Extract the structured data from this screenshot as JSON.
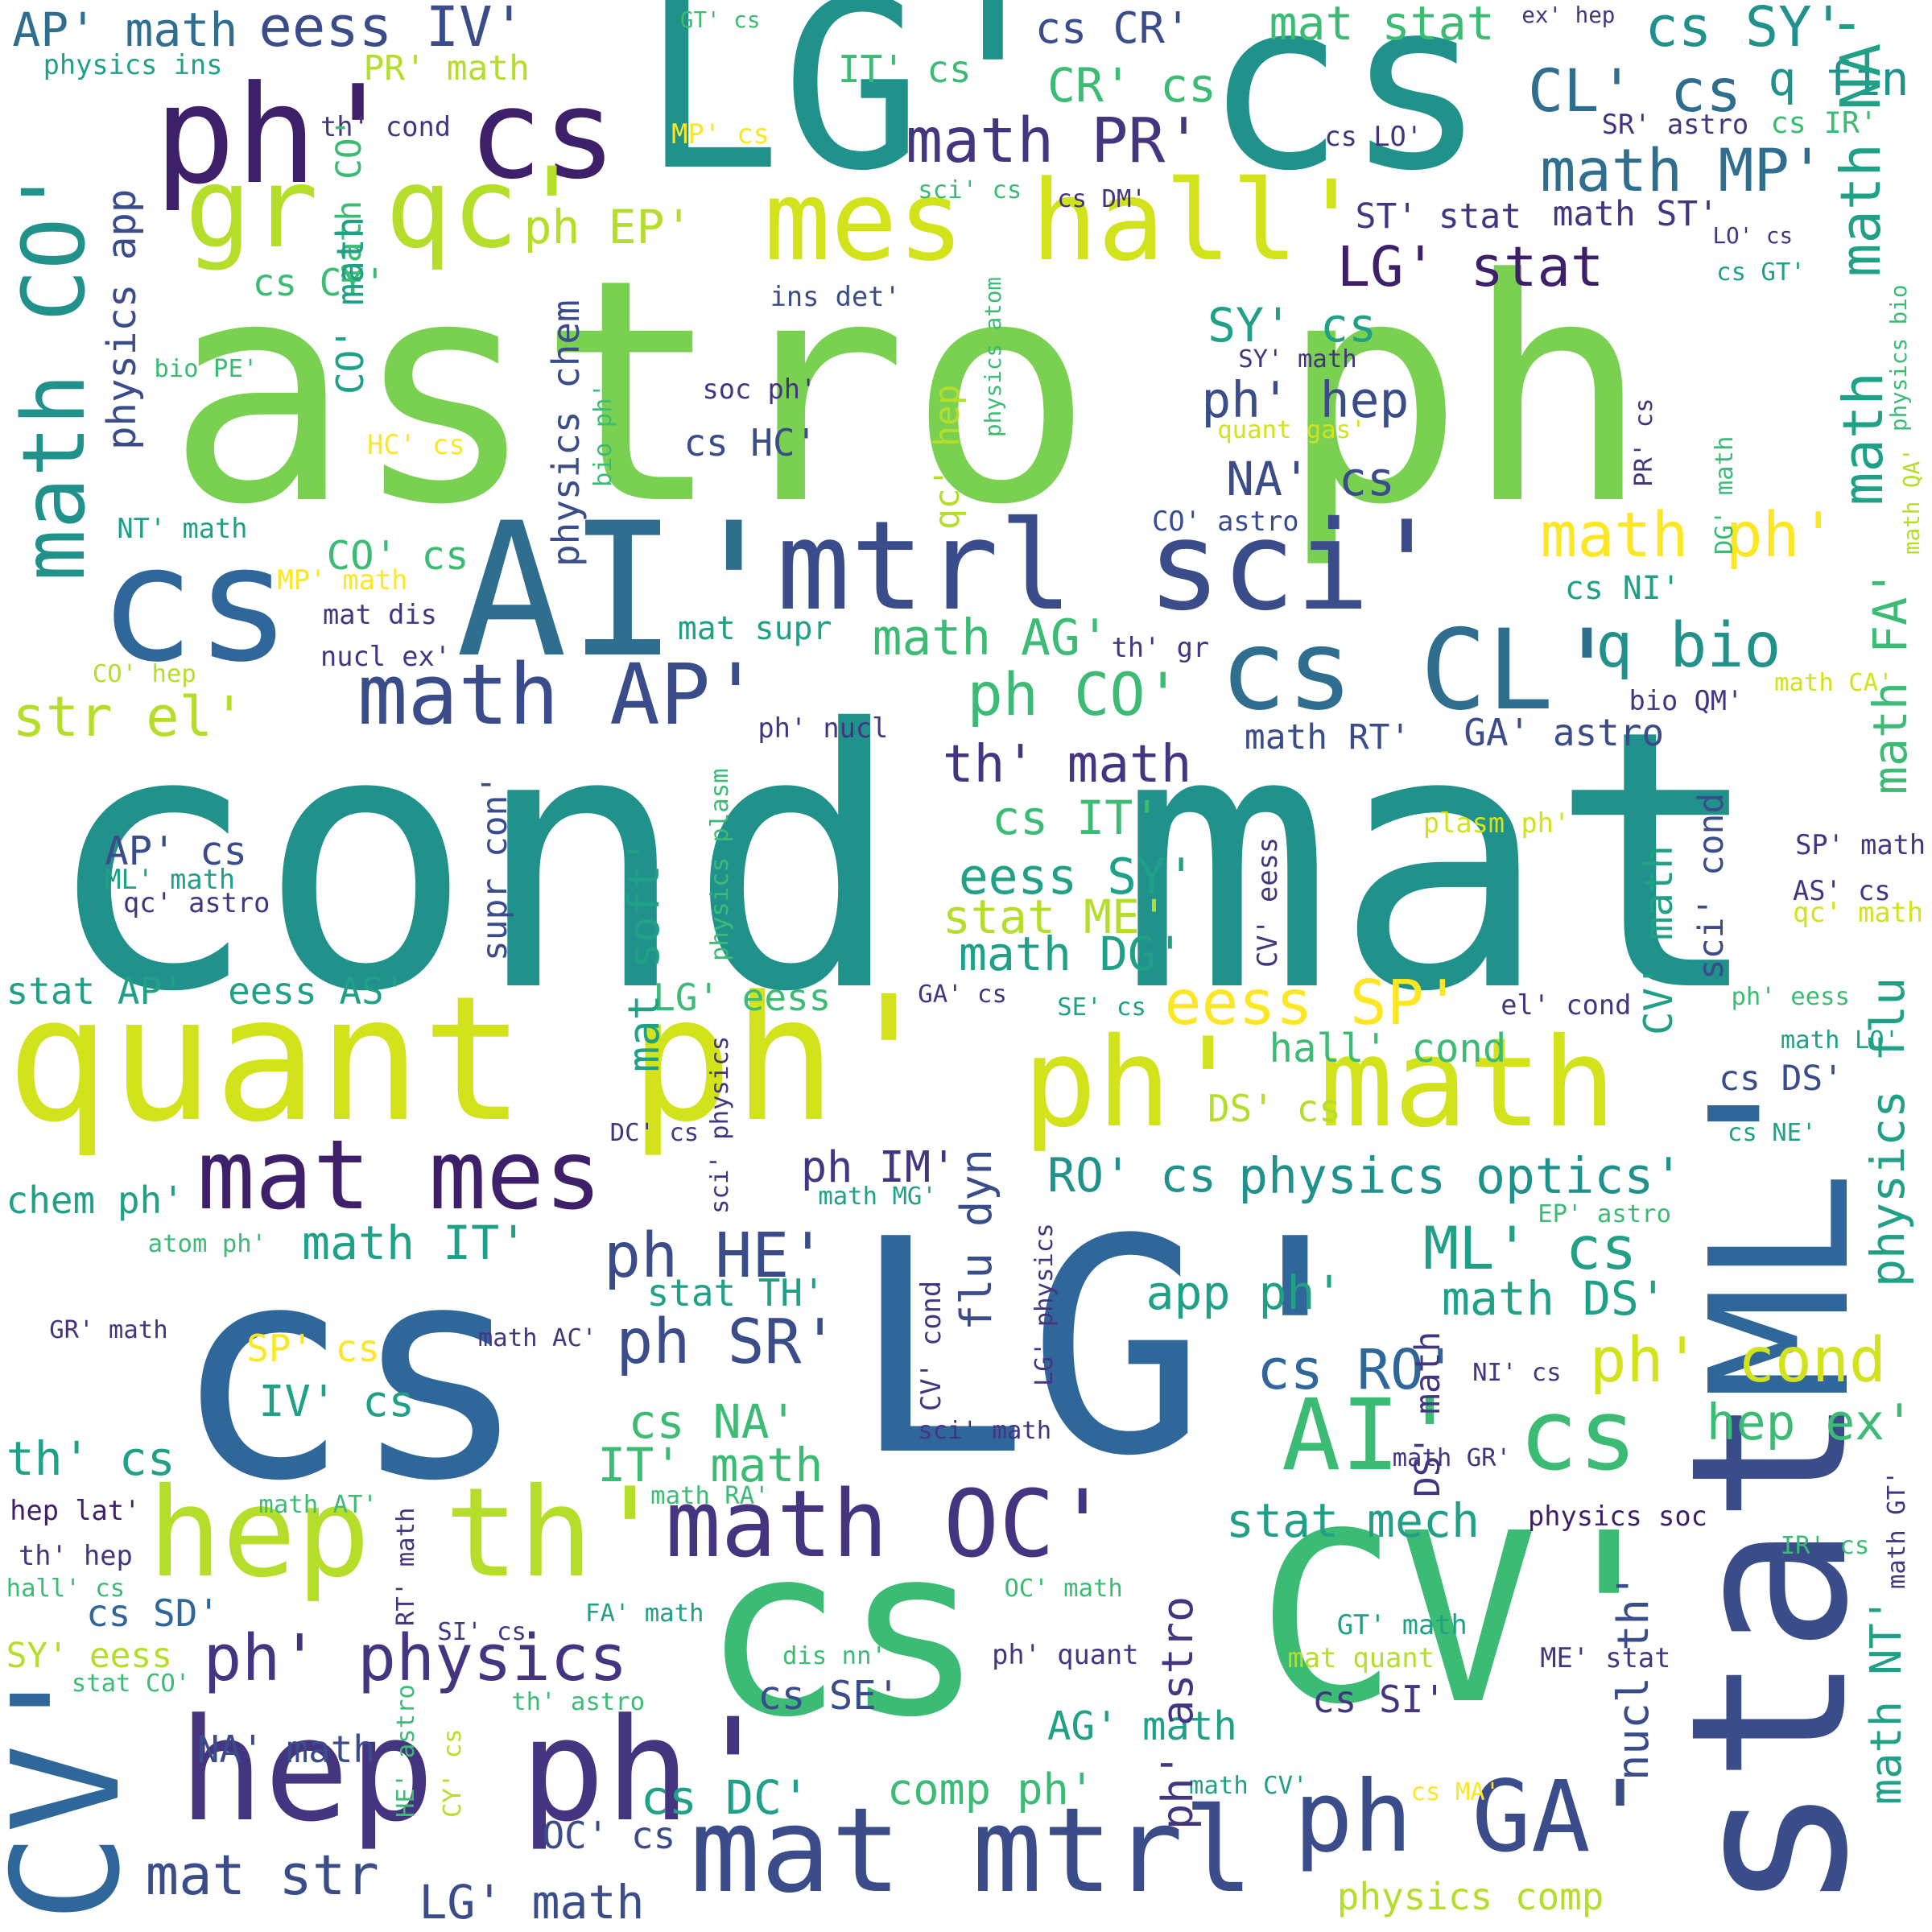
{
  "palette": {
    "purple": "#3e1f6a",
    "indigo": "#453581",
    "slate": "#3a4c8a",
    "blue": "#30679a",
    "steel": "#2f6e8e",
    "teal": "#21918c",
    "sea": "#1fa087",
    "green": "#3cbb75",
    "lime": "#7ad151",
    "yellowgreen": "#b5de2b",
    "yellow": "#fde725",
    "greenyellow": "#d2e21b"
  },
  "words": [
    {
      "text": "astro ph",
      "color": "lime"
    },
    {
      "text": "cond mat",
      "color": "teal"
    },
    {
      "text": "LG' cs",
      "color": "teal"
    },
    {
      "text": "LG'",
      "color": "blue"
    },
    {
      "text": "cs",
      "color": "blue"
    },
    {
      "text": "cs",
      "color": "green"
    },
    {
      "text": "CV'",
      "color": "green"
    },
    {
      "text": "quant ph'",
      "color": "greenyellow"
    },
    {
      "text": "AI'",
      "color": "steel"
    },
    {
      "text": "cs",
      "color": "blue"
    },
    {
      "text": "mtrl sci'",
      "color": "slate"
    },
    {
      "text": "stat",
      "color": "slate"
    },
    {
      "text": "ML'",
      "color": "blue"
    },
    {
      "text": "CV'",
      "color": "blue"
    },
    {
      "text": "hep ph'",
      "color": "indigo"
    },
    {
      "text": "cs",
      "color": "purple"
    },
    {
      "text": "ph'",
      "color": "purple"
    },
    {
      "text": "math CO'",
      "color": "teal"
    },
    {
      "text": "ph' math",
      "color": "greenyellow"
    },
    {
      "text": "hep th'",
      "color": "yellowgreen"
    },
    {
      "text": "mat mes",
      "color": "purple"
    },
    {
      "text": "math OC'",
      "color": "indigo"
    },
    {
      "text": "mat mtrl",
      "color": "slate"
    },
    {
      "text": "ph GA'",
      "color": "slate"
    },
    {
      "text": "cs CL'",
      "color": "steel"
    },
    {
      "text": "mes hall'",
      "color": "greenyellow"
    },
    {
      "text": "math AP'",
      "color": "slate"
    },
    {
      "text": "gr qc'",
      "color": "yellowgreen"
    },
    {
      "text": "AI' cs",
      "color": "green"
    },
    {
      "text": "ph' physics",
      "color": "indigo"
    },
    {
      "text": "q bio",
      "color": "teal"
    },
    {
      "text": "ph' cond",
      "color": "greenyellow"
    },
    {
      "text": "math ph'",
      "color": "yellow"
    },
    {
      "text": "math PR'",
      "color": "indigo"
    },
    {
      "text": "math MP'",
      "color": "steel"
    },
    {
      "text": "CL' cs",
      "color": "steel"
    },
    {
      "text": "q fin",
      "color": "teal"
    },
    {
      "text": "cs SY'",
      "color": "teal"
    },
    {
      "text": "AP' math",
      "color": "steel"
    },
    {
      "text": "eess IV'",
      "color": "slate"
    },
    {
      "text": "cs CR'",
      "color": "slate"
    },
    {
      "text": "mat stat",
      "color": "green"
    },
    {
      "text": "LG' stat",
      "color": "purple"
    },
    {
      "text": "ph EP'",
      "color": "yellowgreen"
    },
    {
      "text": "CR' cs",
      "color": "green"
    },
    {
      "text": "str el'",
      "color": "yellowgreen"
    },
    {
      "text": "ph CO'",
      "color": "green"
    },
    {
      "text": "th' math",
      "color": "indigo"
    },
    {
      "text": "math AG'",
      "color": "green"
    },
    {
      "text": "cs IT'",
      "color": "green"
    },
    {
      "text": "eess SY'",
      "color": "sea"
    },
    {
      "text": "stat ME'",
      "color": "yellowgreen"
    },
    {
      "text": "math DG'",
      "color": "sea"
    },
    {
      "text": "eess SP'",
      "color": "yellow"
    },
    {
      "text": "hall' cond",
      "color": "green"
    },
    {
      "text": "physics optics'",
      "color": "teal"
    },
    {
      "text": "RO' cs",
      "color": "teal"
    },
    {
      "text": "ph IM'",
      "color": "indigo"
    },
    {
      "text": "ph HE'",
      "color": "slate"
    },
    {
      "text": "ph SR'",
      "color": "slate"
    },
    {
      "text": "math IT'",
      "color": "sea"
    },
    {
      "text": "ML' cs",
      "color": "sea"
    },
    {
      "text": "math DS'",
      "color": "sea"
    },
    {
      "text": "app ph'",
      "color": "sea"
    },
    {
      "text": "cs RO'",
      "color": "blue"
    },
    {
      "text": "hep ex'",
      "color": "green"
    },
    {
      "text": "stat mech",
      "color": "sea"
    },
    {
      "text": "cs NA'",
      "color": "green"
    },
    {
      "text": "IT' math",
      "color": "green"
    },
    {
      "text": "th' cs",
      "color": "sea"
    },
    {
      "text": "IV' cs",
      "color": "sea"
    },
    {
      "text": "chem ph'",
      "color": "sea"
    },
    {
      "text": "stat TH'",
      "color": "sea"
    },
    {
      "text": "cs SD'",
      "color": "blue"
    },
    {
      "text": "mat str",
      "color": "slate"
    },
    {
      "text": "LG' math",
      "color": "slate"
    },
    {
      "text": "NA' math",
      "color": "slate"
    },
    {
      "text": "cs DC'",
      "color": "sea"
    },
    {
      "text": "comp ph'",
      "color": "green"
    },
    {
      "text": "AG' math",
      "color": "sea"
    },
    {
      "text": "cs SI'",
      "color": "indigo"
    },
    {
      "text": "cs SE'",
      "color": "slate"
    },
    {
      "text": "OC' cs",
      "color": "slate"
    },
    {
      "text": "physics comp",
      "color": "yellowgreen"
    },
    {
      "text": "SY' eess",
      "color": "yellowgreen"
    },
    {
      "text": "stat AP'",
      "color": "sea"
    },
    {
      "text": "eess AS'",
      "color": "sea"
    },
    {
      "text": "LG' eess",
      "color": "green"
    },
    {
      "text": "AP' cs",
      "color": "slate"
    },
    {
      "text": "SY' cs",
      "color": "sea"
    },
    {
      "text": "ph' hep",
      "color": "slate"
    },
    {
      "text": "NA' cs",
      "color": "slate"
    },
    {
      "text": "CO' cs",
      "color": "green"
    },
    {
      "text": "cs CY'",
      "color": "green"
    },
    {
      "text": "cs HC'",
      "color": "slate"
    },
    {
      "text": "mat supr",
      "color": "sea"
    },
    {
      "text": "math RT'",
      "color": "slate"
    },
    {
      "text": "GA' astro",
      "color": "slate"
    },
    {
      "text": "ST' stat",
      "color": "indigo"
    },
    {
      "text": "math ST'",
      "color": "indigo"
    },
    {
      "text": "cs NI'",
      "color": "sea"
    },
    {
      "text": "cs DS'",
      "color": "slate"
    },
    {
      "text": "DS' cs",
      "color": "yellowgreen"
    },
    {
      "text": "IT' cs",
      "color": "green"
    },
    {
      "text": "PR' math",
      "color": "yellowgreen"
    },
    {
      "text": "physics ins",
      "color": "sea"
    },
    {
      "text": "GT' cs",
      "color": "green"
    },
    {
      "text": "ex' hep",
      "color": "indigo"
    },
    {
      "text": "th' cond",
      "color": "indigo"
    },
    {
      "text": "MP' cs",
      "color": "yellow"
    },
    {
      "text": "cs LO'",
      "color": "indigo"
    },
    {
      "text": "SR' astro",
      "color": "indigo"
    },
    {
      "text": "cs IR'",
      "color": "green"
    },
    {
      "text": "sci' cs",
      "color": "green"
    },
    {
      "text": "cs DM'",
      "color": "indigo"
    },
    {
      "text": "LO' cs",
      "color": "indigo"
    },
    {
      "text": "cs GT'",
      "color": "sea"
    },
    {
      "text": "ins det'",
      "color": "slate"
    },
    {
      "text": "bio PE'",
      "color": "green"
    },
    {
      "text": "soc ph'",
      "color": "indigo"
    },
    {
      "text": "SY' math",
      "color": "indigo"
    },
    {
      "text": "quant gas'",
      "color": "greenyellow"
    },
    {
      "text": "HC' cs",
      "color": "yellow"
    },
    {
      "text": "NT' math",
      "color": "sea"
    },
    {
      "text": "CO' astro",
      "color": "slate"
    },
    {
      "text": "MP' math",
      "color": "yellow"
    },
    {
      "text": "mat dis",
      "color": "indigo"
    },
    {
      "text": "nucl ex'",
      "color": "indigo"
    },
    {
      "text": "CO' hep",
      "color": "yellowgreen"
    },
    {
      "text": "th' gr",
      "color": "indigo"
    },
    {
      "text": "math CA'",
      "color": "greenyellow"
    },
    {
      "text": "bio QM'",
      "color": "indigo"
    },
    {
      "text": "ph' nucl",
      "color": "indigo"
    },
    {
      "text": "plasm ph'",
      "color": "greenyellow"
    },
    {
      "text": "SP' math",
      "color": "indigo"
    },
    {
      "text": "AS' cs",
      "color": "indigo"
    },
    {
      "text": "qc' math",
      "color": "greenyellow"
    },
    {
      "text": "ML' math",
      "color": "sea"
    },
    {
      "text": "qc' astro",
      "color": "indigo"
    },
    {
      "text": "GA' cs",
      "color": "indigo"
    },
    {
      "text": "SE' cs",
      "color": "sea"
    },
    {
      "text": "el' cond",
      "color": "indigo"
    },
    {
      "text": "ph' eess",
      "color": "green"
    },
    {
      "text": "math LO'",
      "color": "sea"
    },
    {
      "text": "cs NE'",
      "color": "sea"
    },
    {
      "text": "DC' cs",
      "color": "indigo"
    },
    {
      "text": "math MG'",
      "color": "sea"
    },
    {
      "text": "EP' astro",
      "color": "green"
    },
    {
      "text": "atom ph'",
      "color": "green"
    },
    {
      "text": "GR' math",
      "color": "indigo"
    },
    {
      "text": "math AC'",
      "color": "indigo"
    },
    {
      "text": "NI' cs",
      "color": "indigo"
    },
    {
      "text": "SP' cs",
      "color": "yellow"
    },
    {
      "text": "sci' math",
      "color": "indigo"
    },
    {
      "text": "math GR'",
      "color": "indigo"
    },
    {
      "text": "hep lat'",
      "color": "purple"
    },
    {
      "text": "math AT'",
      "color": "green"
    },
    {
      "text": "math RA'",
      "color": "green"
    },
    {
      "text": "physics soc",
      "color": "purple"
    },
    {
      "text": "th' hep",
      "color": "indigo"
    },
    {
      "text": "hall' cs",
      "color": "green"
    },
    {
      "text": "IR' cs",
      "color": "green"
    },
    {
      "text": "OC' math",
      "color": "green"
    },
    {
      "text": "GT' math",
      "color": "sea"
    },
    {
      "text": "SI' cs",
      "color": "indigo"
    },
    {
      "text": "FA' math",
      "color": "sea"
    },
    {
      "text": "dis nn'",
      "color": "green"
    },
    {
      "text": "ph' quant",
      "color": "indigo"
    },
    {
      "text": "mat quant",
      "color": "yellowgreen"
    },
    {
      "text": "ME' stat",
      "color": "indigo"
    },
    {
      "text": "stat CO'",
      "color": "green"
    },
    {
      "text": "th' astro",
      "color": "green"
    },
    {
      "text": "math CV'",
      "color": "sea"
    },
    {
      "text": "cs MA'",
      "color": "yellow"
    },
    {
      "text": "physics app",
      "color": "slate"
    },
    {
      "text": "math CO'",
      "color": "green"
    },
    {
      "text": "CO' math",
      "color": "sea"
    },
    {
      "text": "physics chem",
      "color": "slate"
    },
    {
      "text": "physics atom",
      "color": "green"
    },
    {
      "text": "bio ph'",
      "color": "green"
    },
    {
      "text": "qc' hep",
      "color": "yellowgreen"
    },
    {
      "text": "mat soft'",
      "color": "sea"
    },
    {
      "text": "supr con'",
      "color": "slate"
    },
    {
      "text": "physics plasm",
      "color": "green"
    },
    {
      "text": "sci' physics",
      "color": "indigo"
    },
    {
      "text": "flu dyn",
      "color": "slate"
    },
    {
      "text": "LG' physics",
      "color": "indigo"
    },
    {
      "text": "CV' cond",
      "color": "indigo"
    },
    {
      "text": "CV' eess",
      "color": "indigo"
    },
    {
      "text": "CV' math",
      "color": "sea"
    },
    {
      "text": "sci' cond",
      "color": "slate"
    },
    {
      "text": "nucl th'",
      "color": "slate"
    },
    {
      "text": "ph' astro",
      "color": "indigo"
    },
    {
      "text": "CY' cs",
      "color": "yellowgreen"
    },
    {
      "text": "HE' astro",
      "color": "green"
    },
    {
      "text": "RT' math",
      "color": "indigo"
    },
    {
      "text": "DS' math",
      "color": "indigo"
    },
    {
      "text": "PR' cs",
      "color": "indigo"
    },
    {
      "text": "DG' math",
      "color": "green"
    },
    {
      "text": "math NA'",
      "color": "sea"
    },
    {
      "text": "math",
      "color": "sea"
    },
    {
      "text": "physics bio",
      "color": "green"
    },
    {
      "text": "math QA'",
      "color": "yellowgreen"
    },
    {
      "text": "math FA'",
      "color": "green"
    },
    {
      "text": "physics flu",
      "color": "sea"
    },
    {
      "text": "math NT'",
      "color": "sea"
    },
    {
      "text": "math GT'",
      "color": "indigo"
    }
  ]
}
